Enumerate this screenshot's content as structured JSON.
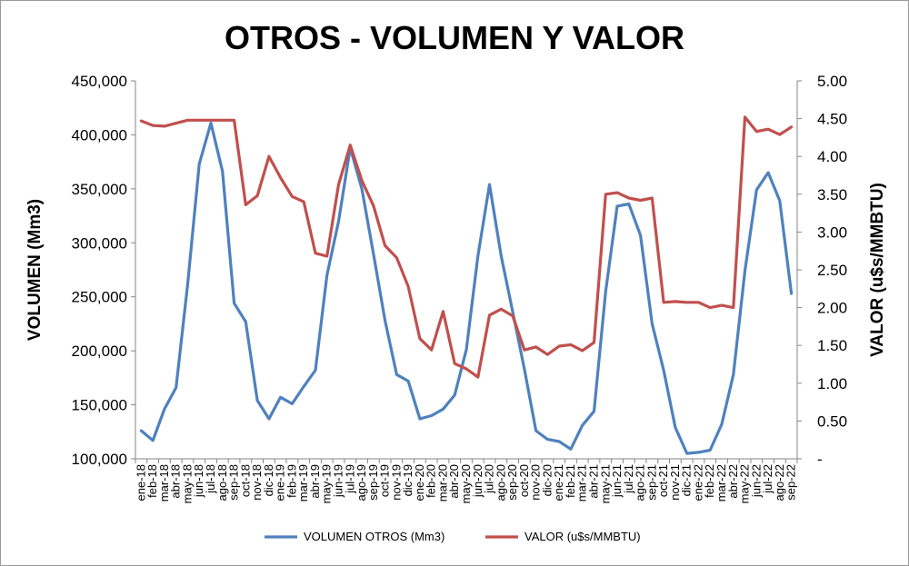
{
  "chart_data": {
    "type": "line",
    "title": "OTROS - VOLUMEN Y VALOR",
    "ylabel": "VOLUMEN (Mm3)",
    "y2label": "VALOR (u$s/MMBTU)",
    "ylim": [
      100000,
      450000
    ],
    "y2lim": [
      0,
      5
    ],
    "grid": false,
    "legend_position": "bottom",
    "y_ticks": [
      "100,000",
      "150,000",
      "200,000",
      "250,000",
      "300,000",
      "350,000",
      "400,000",
      "450,000"
    ],
    "y2_ticks": [
      "-",
      "0.50",
      "1.00",
      "1.50",
      "2.00",
      "2.50",
      "3.00",
      "3.50",
      "4.00",
      "4.50",
      "5.00"
    ],
    "categories": [
      "ene-18",
      "feb-18",
      "mar-18",
      "abr-18",
      "may-18",
      "jun-18",
      "jul-18",
      "ago-18",
      "sep-18",
      "oct-18",
      "nov-18",
      "dic-18",
      "ene-19",
      "feb-19",
      "mar-19",
      "abr-19",
      "may-19",
      "jun-19",
      "jul-19",
      "ago-19",
      "sep-19",
      "oct-19",
      "nov-19",
      "dic-19",
      "ene-20",
      "feb-20",
      "mar-20",
      "abr-20",
      "may-20",
      "jun-20",
      "jul-20",
      "ago-20",
      "sep-20",
      "oct-20",
      "nov-20",
      "dic-20",
      "ene-21",
      "feb-21",
      "mar-21",
      "abr-21",
      "may-21",
      "jun-21",
      "jul-21",
      "ago-21",
      "sep-21",
      "oct-21",
      "nov-21",
      "dic-21",
      "ene-22",
      "feb-22",
      "mar-22",
      "abr-22",
      "may-22",
      "jun-22",
      "jul-22",
      "ago-22",
      "sep-22"
    ],
    "series": [
      {
        "name": "VOLUMEN OTROS (Mm3)",
        "axis": "left",
        "color": "#4F81BD",
        "values": [
          126000,
          117000,
          146000,
          166000,
          262000,
          373000,
          411000,
          366000,
          244000,
          227000,
          154000,
          137000,
          157000,
          151000,
          167000,
          182000,
          270000,
          320000,
          388000,
          350000,
          290000,
          228000,
          178000,
          172000,
          137000,
          140000,
          146000,
          159000,
          201000,
          288000,
          354000,
          288000,
          236000,
          183000,
          126000,
          118000,
          116000,
          109000,
          131000,
          144000,
          255000,
          334000,
          336000,
          307000,
          225000,
          182000,
          129000,
          105000,
          106000,
          108000,
          132000,
          178000,
          274000,
          349000,
          365000,
          339000,
          253000
        ]
      },
      {
        "name": "VALOR (u$s/MMBTU)",
        "axis": "right",
        "color": "#C0504D",
        "values": [
          4.47,
          4.41,
          4.4,
          4.44,
          4.48,
          4.48,
          4.48,
          4.48,
          4.48,
          3.36,
          3.48,
          4.0,
          3.72,
          3.47,
          3.4,
          2.72,
          2.68,
          3.63,
          4.15,
          3.68,
          3.35,
          2.82,
          2.66,
          2.28,
          1.59,
          1.44,
          1.95,
          1.26,
          1.19,
          1.08,
          1.9,
          1.98,
          1.89,
          1.44,
          1.48,
          1.38,
          1.49,
          1.51,
          1.43,
          1.54,
          3.5,
          3.52,
          3.45,
          3.42,
          3.45,
          2.07,
          2.08,
          2.07,
          2.07,
          2.0,
          2.03,
          2.0,
          4.52,
          4.33,
          4.36,
          4.29,
          4.39
        ]
      }
    ]
  }
}
